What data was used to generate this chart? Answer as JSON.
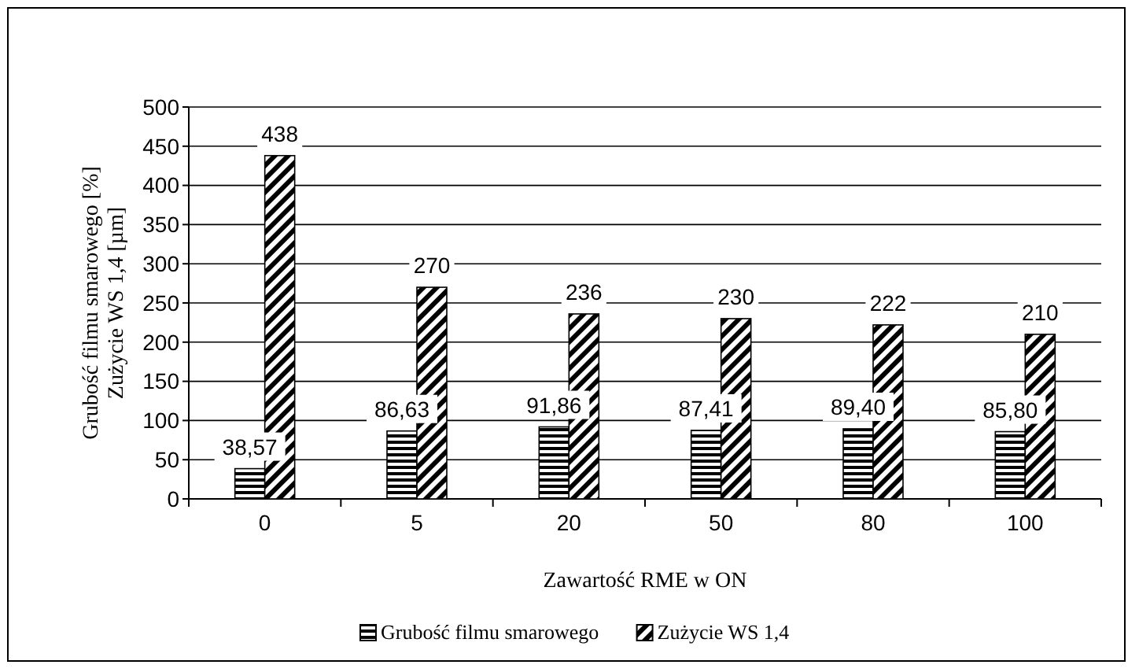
{
  "chart_data": {
    "type": "bar",
    "xlabel": "Zawartość RME w ON",
    "ylabel": "Grubość filmu smarowego [%]\nZużycie WS 1,4 [µm]",
    "categories": [
      "0",
      "5",
      "20",
      "50",
      "80",
      "100"
    ],
    "series": [
      {
        "name": "Grubość filmu smarowego",
        "color": "#000000",
        "values": [
          38.57,
          86.63,
          91.86,
          87.41,
          89.4,
          85.8
        ],
        "value_labels": [
          "38,57",
          "86,63",
          "91,86",
          "87,41",
          "89,40",
          "85,80"
        ]
      },
      {
        "name": "Zużycie WS 1,4",
        "color": "#000000",
        "values": [
          438,
          270,
          236,
          230,
          222,
          210
        ],
        "value_labels": [
          "438",
          "270",
          "236",
          "230",
          "222",
          "210"
        ]
      }
    ],
    "ylim": [
      0,
      500
    ],
    "yticks": [
      0,
      50,
      100,
      150,
      200,
      250,
      300,
      350,
      400,
      450,
      500
    ],
    "grid": "y",
    "legend": "bottom"
  }
}
